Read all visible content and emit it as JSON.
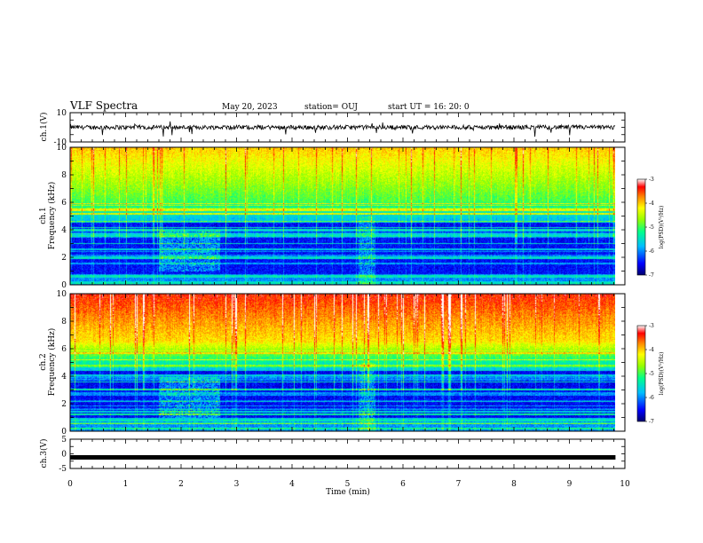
{
  "header": {
    "title": "VLF Spectra",
    "date": "May 20, 2023",
    "station": "station= OUJ",
    "start": "start  UT =   16: 20: 0"
  },
  "chart_data": [
    {
      "type": "line",
      "name": "ch1-waveform",
      "ylabel": "ch.1(V)",
      "ylim": [
        -10,
        10
      ],
      "yticks": [
        10,
        -10
      ],
      "xlim": [
        0,
        10
      ],
      "x_extent": [
        0,
        9.83
      ],
      "baseline": 0,
      "amplitude": 1.5
    },
    {
      "type": "heatmap",
      "name": "ch1-spectrogram",
      "ylabel": "ch.1\nFrequency  (kHz)",
      "ylim": [
        0,
        10
      ],
      "yticks": [
        0,
        2,
        4,
        6,
        8,
        10
      ],
      "xlim": [
        0,
        10
      ],
      "x_extent": [
        0,
        9.83
      ],
      "colorbar": {
        "label": "log(PSD)(V²/Hz)",
        "range": [
          -7,
          -3
        ],
        "ticks": [
          -3,
          -4,
          -5,
          -6,
          -7
        ]
      }
    },
    {
      "type": "heatmap",
      "name": "ch2-spectrogram",
      "ylabel": "ch.2\nFrequency  (kHz)",
      "ylim": [
        0,
        10
      ],
      "yticks": [
        0,
        2,
        4,
        6,
        8,
        10
      ],
      "xlim": [
        0,
        10
      ],
      "x_extent": [
        0,
        9.83
      ],
      "colorbar": {
        "label": "log(PSD)(V²/Hz)",
        "range": [
          -7,
          -3
        ],
        "ticks": [
          -3,
          -4,
          -5,
          -6,
          -7
        ]
      }
    },
    {
      "type": "line",
      "name": "ch3-trace",
      "ylabel": "ch.3(V)",
      "ylim": [
        -5,
        5
      ],
      "yticks": [
        5,
        0,
        -5
      ],
      "xlim": [
        0,
        10
      ],
      "x_extent": [
        0,
        9.83
      ],
      "value": -1.2
    }
  ],
  "xaxis": {
    "label": "Time  (min)",
    "ticks": [
      0,
      1,
      2,
      3,
      4,
      5,
      6,
      7,
      8,
      9,
      10
    ]
  },
  "colors": {
    "scale": [
      "#000080",
      "#0000ff",
      "#00c8ff",
      "#00ff80",
      "#a0ff00",
      "#ffff00",
      "#ff8000",
      "#ff0000",
      "#ffffff"
    ]
  }
}
